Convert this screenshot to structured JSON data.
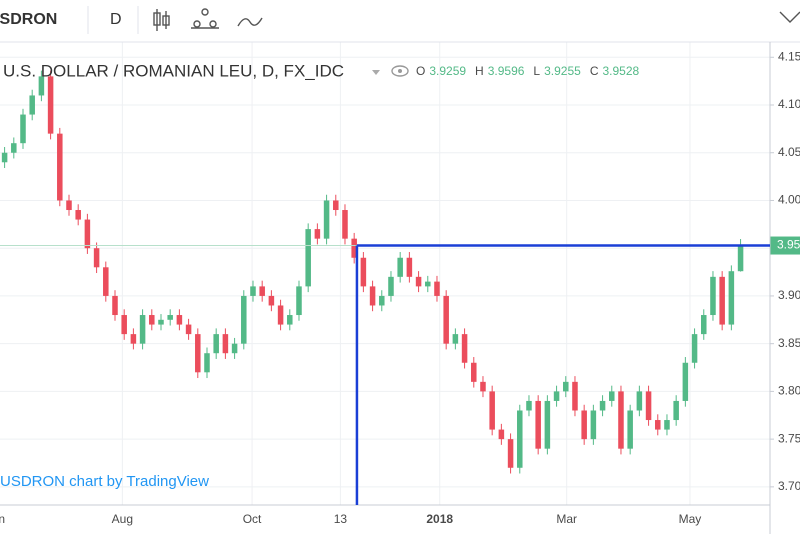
{
  "toolbar": {
    "symbol": "USDRON",
    "interval": "D"
  },
  "chart_data": {
    "type": "candlestick",
    "title": "U.S. DOLLAR / ROMANIAN LEU, D, FX_IDC",
    "ohlc_labels": [
      "O",
      "H",
      "L",
      "C"
    ],
    "watermark": "USDRON chart by TradingView",
    "up_color": "#53b987",
    "down_color": "#eb4d5c",
    "annotation_x": 38.3,
    "ohlc": [
      [
        4.04,
        4.056,
        4.034,
        4.05
      ],
      [
        4.05,
        4.066,
        4.044,
        4.06
      ],
      [
        4.06,
        4.096,
        4.054,
        4.09
      ],
      [
        4.09,
        4.116,
        4.084,
        4.11
      ],
      [
        4.11,
        4.136,
        4.104,
        4.13
      ],
      [
        4.13,
        4.136,
        4.064,
        4.07
      ],
      [
        4.07,
        4.076,
        3.994,
        4.0
      ],
      [
        4.0,
        4.006,
        3.984,
        3.99
      ],
      [
        3.99,
        3.996,
        3.974,
        3.98
      ],
      [
        3.98,
        3.986,
        3.944,
        3.95
      ],
      [
        3.95,
        3.956,
        3.924,
        3.93
      ],
      [
        3.93,
        3.936,
        3.894,
        3.9
      ],
      [
        3.9,
        3.906,
        3.874,
        3.88
      ],
      [
        3.88,
        3.886,
        3.854,
        3.86
      ],
      [
        3.86,
        3.866,
        3.844,
        3.85
      ],
      [
        3.85,
        3.886,
        3.844,
        3.88
      ],
      [
        3.88,
        3.886,
        3.864,
        3.87
      ],
      [
        3.87,
        3.881,
        3.864,
        3.875
      ],
      [
        3.875,
        3.886,
        3.869,
        3.88
      ],
      [
        3.88,
        3.886,
        3.864,
        3.87
      ],
      [
        3.87,
        3.876,
        3.854,
        3.86
      ],
      [
        3.86,
        3.866,
        3.814,
        3.82
      ],
      [
        3.82,
        3.846,
        3.814,
        3.84
      ],
      [
        3.84,
        3.866,
        3.834,
        3.86
      ],
      [
        3.86,
        3.866,
        3.834,
        3.84
      ],
      [
        3.84,
        3.856,
        3.834,
        3.85
      ],
      [
        3.85,
        3.906,
        3.844,
        3.9
      ],
      [
        3.9,
        3.916,
        3.894,
        3.91
      ],
      [
        3.91,
        3.916,
        3.894,
        3.9
      ],
      [
        3.9,
        3.906,
        3.884,
        3.89
      ],
      [
        3.89,
        3.896,
        3.864,
        3.87
      ],
      [
        3.87,
        3.886,
        3.864,
        3.88
      ],
      [
        3.88,
        3.916,
        3.874,
        3.91
      ],
      [
        3.91,
        3.976,
        3.904,
        3.97
      ],
      [
        3.97,
        3.976,
        3.954,
        3.96
      ],
      [
        3.96,
        4.006,
        3.954,
        4.0
      ],
      [
        4.0,
        4.006,
        3.984,
        3.99
      ],
      [
        3.99,
        3.996,
        3.954,
        3.96
      ],
      [
        3.96,
        3.966,
        3.934,
        3.94
      ],
      [
        3.94,
        3.946,
        3.904,
        3.91
      ],
      [
        3.91,
        3.916,
        3.884,
        3.89
      ],
      [
        3.89,
        3.906,
        3.884,
        3.9
      ],
      [
        3.9,
        3.926,
        3.894,
        3.92
      ],
      [
        3.92,
        3.946,
        3.914,
        3.94
      ],
      [
        3.94,
        3.946,
        3.914,
        3.92
      ],
      [
        3.92,
        3.926,
        3.904,
        3.91
      ],
      [
        3.91,
        3.921,
        3.904,
        3.915
      ],
      [
        3.915,
        3.921,
        3.894,
        3.9
      ],
      [
        3.9,
        3.906,
        3.844,
        3.85
      ],
      [
        3.85,
        3.866,
        3.844,
        3.86
      ],
      [
        3.86,
        3.866,
        3.824,
        3.83
      ],
      [
        3.83,
        3.836,
        3.804,
        3.81
      ],
      [
        3.81,
        3.816,
        3.794,
        3.8
      ],
      [
        3.8,
        3.806,
        3.754,
        3.76
      ],
      [
        3.76,
        3.766,
        3.744,
        3.75
      ],
      [
        3.75,
        3.756,
        3.714,
        3.72
      ],
      [
        3.72,
        3.786,
        3.714,
        3.78
      ],
      [
        3.78,
        3.796,
        3.774,
        3.79
      ],
      [
        3.79,
        3.796,
        3.734,
        3.74
      ],
      [
        3.74,
        3.796,
        3.734,
        3.79
      ],
      [
        3.79,
        3.806,
        3.784,
        3.8
      ],
      [
        3.8,
        3.816,
        3.794,
        3.81
      ],
      [
        3.81,
        3.816,
        3.774,
        3.78
      ],
      [
        3.78,
        3.786,
        3.744,
        3.75
      ],
      [
        3.75,
        3.786,
        3.744,
        3.78
      ],
      [
        3.78,
        3.796,
        3.774,
        3.79
      ],
      [
        3.79,
        3.806,
        3.784,
        3.8
      ],
      [
        3.8,
        3.806,
        3.734,
        3.74
      ],
      [
        3.74,
        3.786,
        3.734,
        3.78
      ],
      [
        3.78,
        3.806,
        3.774,
        3.8
      ],
      [
        3.8,
        3.806,
        3.764,
        3.77
      ],
      [
        3.77,
        3.776,
        3.754,
        3.76
      ],
      [
        3.76,
        3.776,
        3.754,
        3.77
      ],
      [
        3.77,
        3.796,
        3.764,
        3.79
      ],
      [
        3.79,
        3.836,
        3.784,
        3.83
      ],
      [
        3.83,
        3.866,
        3.824,
        3.86
      ],
      [
        3.86,
        3.886,
        3.854,
        3.88
      ],
      [
        3.88,
        3.926,
        3.874,
        3.92
      ],
      [
        3.92,
        3.926,
        3.864,
        3.87
      ],
      [
        3.87,
        3.932,
        3.864,
        3.9259
      ],
      [
        3.9259,
        3.9596,
        3.9255,
        3.9528
      ]
    ],
    "xlim": [
      -0.5,
      83.2
    ],
    "xticks": [
      {
        "value": -1,
        "label": "Jun"
      },
      {
        "value": 12.8,
        "label": "Aug"
      },
      {
        "value": 26.9,
        "label": "Oct"
      },
      {
        "value": 36.5,
        "label": "13"
      },
      {
        "value": 47.3,
        "label": "2018"
      },
      {
        "value": 61.1,
        "label": "Mar"
      },
      {
        "value": 74.5,
        "label": "May"
      }
    ],
    "ylim": [
      3.681,
      4.166
    ],
    "yticks": [
      {
        "value": 3.7,
        "label": "3.70"
      },
      3.75,
      {
        "value": 3.8,
        "label": "3.80"
      },
      3.85,
      {
        "value": 3.9,
        "label": "3.90"
      },
      3.95,
      {
        "value": 4.0,
        "label": "4.00"
      },
      4.05,
      {
        "value": 4.1,
        "label": "4.10"
      },
      4.15
    ],
    "grid": true
  }
}
